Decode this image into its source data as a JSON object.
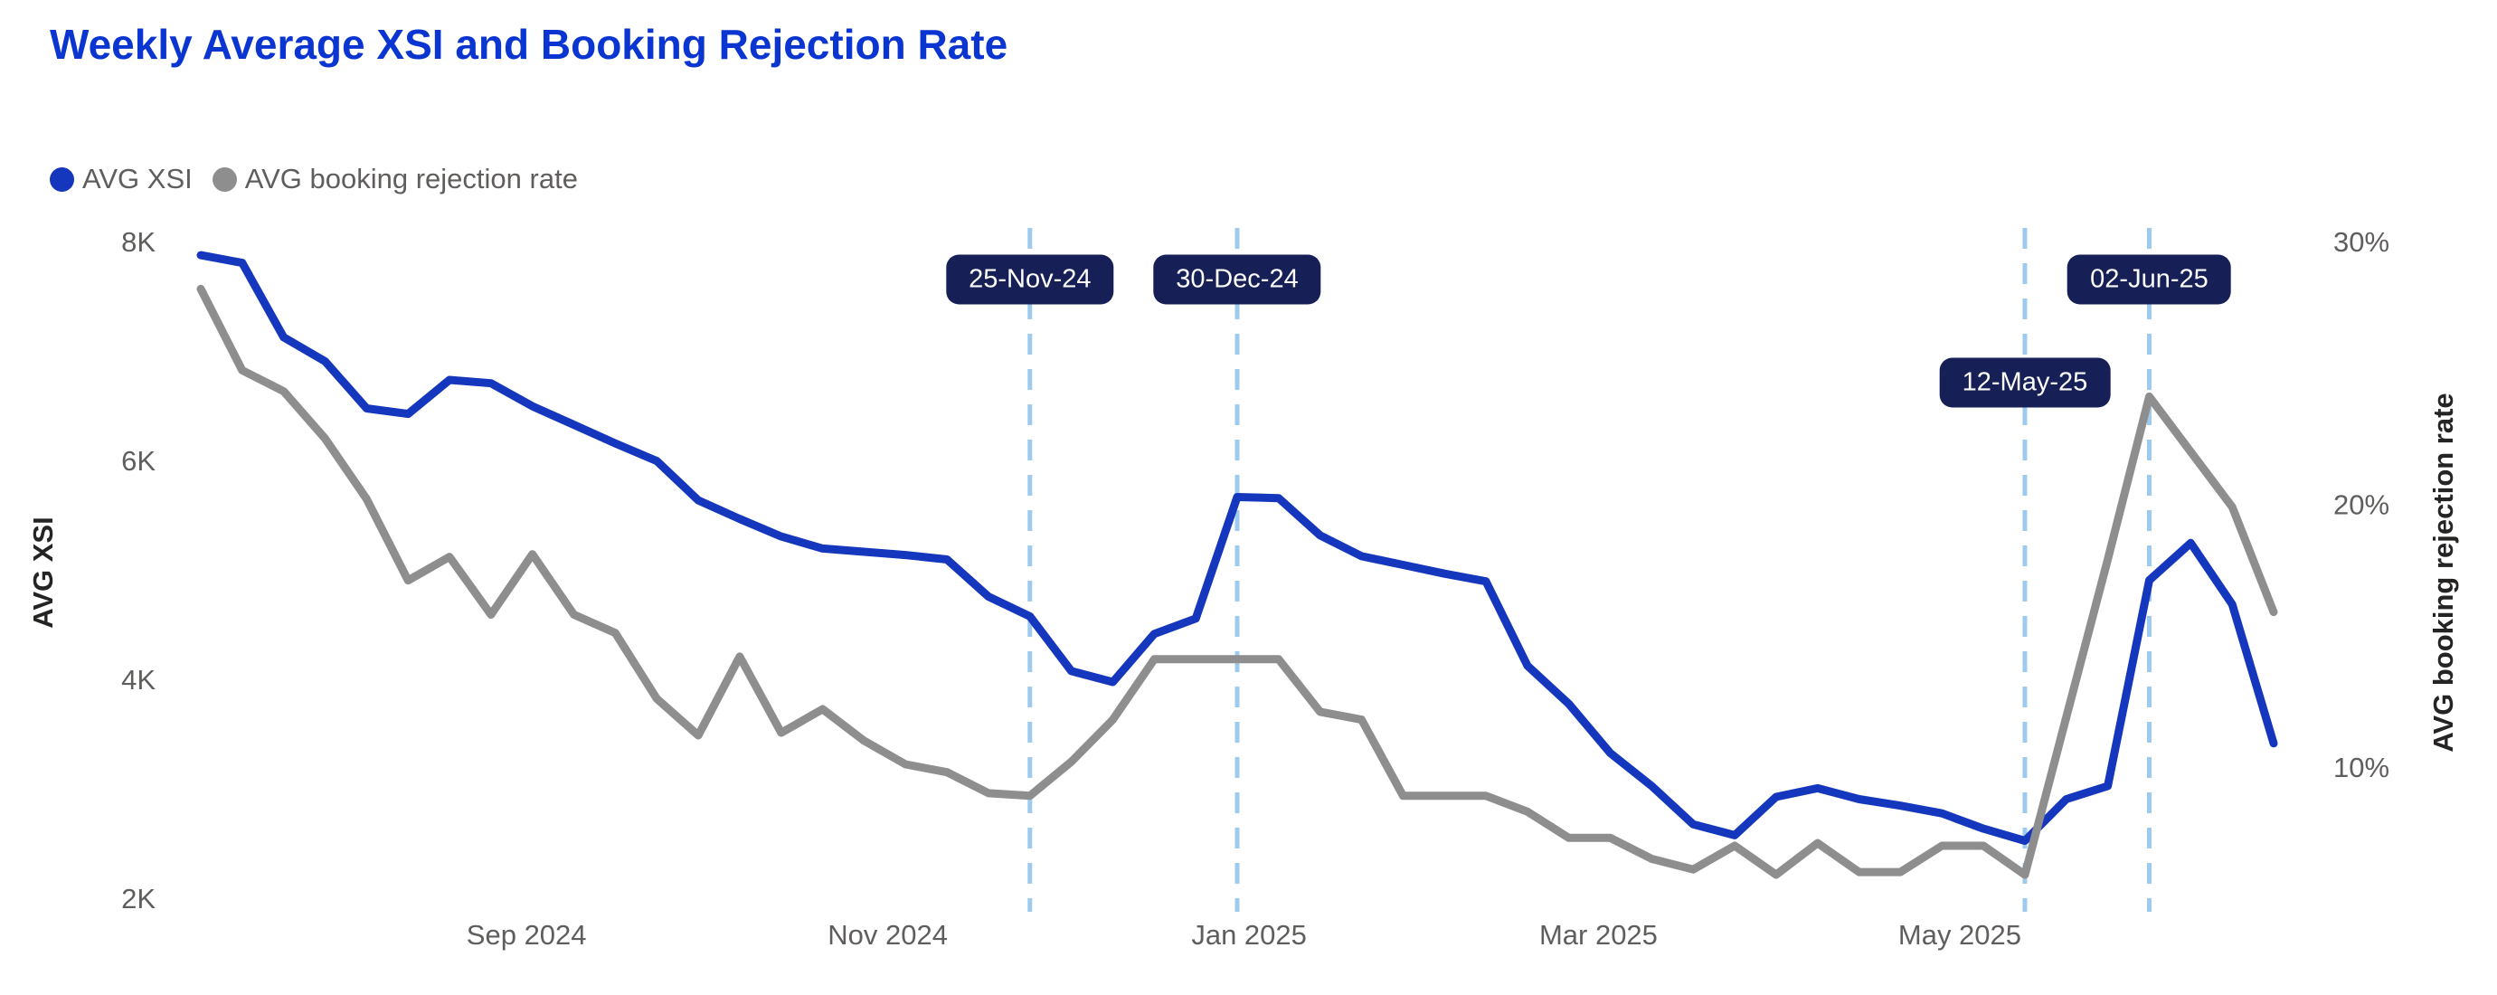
{
  "title": {
    "text": "Weekly Average XSI and Booking Rejection Rate",
    "color": "#0b35d0"
  },
  "legend": {
    "items": [
      {
        "label": "AVG XSI",
        "color": "#1437bd",
        "icon": "circle-dot"
      },
      {
        "label": "AVG booking rejection rate",
        "color": "#8e8e8e",
        "icon": "circle-dot"
      }
    ]
  },
  "chart_data": {
    "type": "line",
    "title": "Weekly Average XSI and Booking Rejection Rate",
    "grid": false,
    "legend_position": "top-left",
    "x": [
      "08-Jul-24",
      "15-Jul-24",
      "22-Jul-24",
      "29-Jul-24",
      "05-Aug-24",
      "12-Aug-24",
      "19-Aug-24",
      "26-Aug-24",
      "02-Sep-24",
      "09-Sep-24",
      "16-Sep-24",
      "23-Sep-24",
      "30-Sep-24",
      "07-Oct-24",
      "14-Oct-24",
      "21-Oct-24",
      "28-Oct-24",
      "04-Nov-24",
      "11-Nov-24",
      "18-Nov-24",
      "25-Nov-24",
      "02-Dec-24",
      "09-Dec-24",
      "16-Dec-24",
      "23-Dec-24",
      "30-Dec-24",
      "06-Jan-25",
      "13-Jan-25",
      "20-Jan-25",
      "27-Jan-25",
      "03-Feb-25",
      "10-Feb-25",
      "17-Feb-25",
      "24-Feb-25",
      "03-Mar-25",
      "10-Mar-25",
      "17-Mar-25",
      "24-Mar-25",
      "31-Mar-25",
      "07-Apr-25",
      "14-Apr-25",
      "21-Apr-25",
      "28-Apr-25",
      "05-May-25",
      "12-May-25",
      "19-May-25",
      "26-May-25",
      "02-Jun-25",
      "09-Jun-25",
      "16-Jun-25",
      "23-Jun-25"
    ],
    "series": [
      {
        "name": "AVG XSI",
        "axis": "left",
        "color": "#1437bd",
        "values": [
          7900,
          7830,
          7150,
          6930,
          6500,
          6450,
          6760,
          6730,
          6520,
          6350,
          6180,
          6020,
          5660,
          5490,
          5330,
          5220,
          5190,
          5160,
          5120,
          4780,
          4600,
          4100,
          4000,
          4440,
          4580,
          5690,
          5680,
          5340,
          5150,
          5070,
          4990,
          4920,
          4150,
          3800,
          3350,
          3050,
          2700,
          2600,
          2950,
          3030,
          2930,
          2870,
          2800,
          2660,
          2550,
          2930,
          3050,
          4930,
          5270,
          4710,
          3440
        ]
      },
      {
        "name": "AVG booking rejection rate",
        "axis": "right",
        "color": "#8e8e8e",
        "values": [
          28.3,
          25.2,
          24.4,
          22.6,
          20.3,
          17.2,
          18.1,
          15.9,
          18.2,
          15.9,
          15.2,
          12.7,
          11.3,
          14.3,
          11.4,
          12.3,
          11.1,
          10.2,
          9.9,
          9.1,
          9.0,
          10.3,
          11.9,
          14.2,
          14.2,
          14.2,
          14.2,
          12.2,
          11.9,
          9.0,
          9.0,
          9.0,
          8.4,
          7.4,
          7.4,
          6.6,
          6.2,
          7.1,
          6.0,
          7.2,
          6.1,
          6.1,
          7.1,
          7.1,
          6.0,
          12.0,
          18.0,
          24.2,
          22.1,
          20.0,
          16.0
        ]
      }
    ],
    "left_axis": {
      "title": "AVG XSI",
      "range": [
        2000,
        8000
      ],
      "ticks": [
        {
          "label": "8K",
          "value": 8000
        },
        {
          "label": "6K",
          "value": 6000
        },
        {
          "label": "4K",
          "value": 4000
        },
        {
          "label": "2K",
          "value": 2000
        }
      ]
    },
    "right_axis": {
      "title": "AVG booking rejection rate",
      "range": [
        5,
        30
      ],
      "ticks": [
        {
          "label": "30%",
          "value": 30
        },
        {
          "label": "20%",
          "value": 20
        },
        {
          "label": "10%",
          "value": 10
        }
      ]
    },
    "x_axis": {
      "ticks": [
        {
          "label": "Sep 2024",
          "week": 7.857
        },
        {
          "label": "Nov 2024",
          "week": 16.571
        },
        {
          "label": "Jan 2025",
          "week": 25.286
        },
        {
          "label": "Mar 2025",
          "week": 33.714
        },
        {
          "label": "May 2025",
          "week": 42.429
        }
      ]
    },
    "annotations": [
      {
        "label": "25-Nov-24",
        "week": 20,
        "row": "top"
      },
      {
        "label": "30-Dec-24",
        "week": 25,
        "row": "top"
      },
      {
        "label": "12-May-25",
        "week": 44,
        "row": "mid"
      },
      {
        "label": "02-Jun-25",
        "week": 47,
        "row": "top"
      }
    ],
    "annotation_style": {
      "line_color": "#9dcbf0",
      "pill_bg": "#161f56",
      "pill_text": "#ffffff"
    }
  },
  "colors": {
    "background": "#ffffff",
    "axis_text": "#605e5c",
    "axis_title_text": "#252423"
  }
}
